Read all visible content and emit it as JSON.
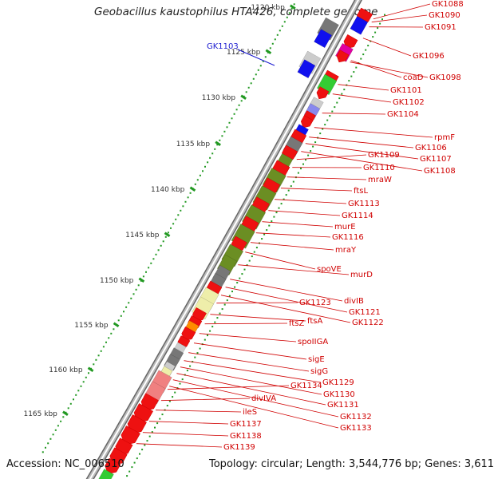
{
  "title": "Geobacillus kaustophilus HTA426, complete genome",
  "accession_text": "Accession: NC_006510",
  "topology_text": "Topology: circular; Length: 3,544,776 bp; Genes: 3,611",
  "scale_labels": [
    "1120 kbp",
    "1125 kbp",
    "1130 kbp",
    "1135 kbp",
    "1140 kbp",
    "1145 kbp",
    "1150 kbp",
    "1155 kbp",
    "1160 kbp",
    "1165 kbp"
  ],
  "gene_labels": [
    "GK1088",
    "GK1090",
    "GK1091",
    "GK1096",
    "coaD",
    "GK1098",
    "GK1101",
    "GK1102",
    "GK1104",
    "rpmF",
    "GK1106",
    "GK1107",
    "GK1108",
    "GK1109",
    "GK1110",
    "mraW",
    "ftsL",
    "GK1113",
    "GK1114",
    "murE",
    "GK1116",
    "mraY",
    "spoVE",
    "murD",
    "divIB",
    "GK1121",
    "GK1122",
    "GK1123",
    "ftsA",
    "ftsZ",
    "spoIIGA",
    "sigE",
    "sigG",
    "GK1129",
    "GK1130",
    "GK1131",
    "GK1132",
    "GK1133",
    "GK1134",
    "divIVA",
    "ileS",
    "GK1137",
    "GK1138",
    "GK1139"
  ],
  "highlight_label": "GK1103",
  "colors": {
    "cds_red": "#ee1111",
    "label_red": "#d00000",
    "highlight_blue": "#1a1ad0",
    "olive": "#6b8e23",
    "pale_yellow": "#eeeeaa",
    "orange": "#ff8c00",
    "green": "#33cc33",
    "salmon": "#f08080",
    "gray": "#777777",
    "backbone": "#888888",
    "tick_green": "#229922"
  }
}
